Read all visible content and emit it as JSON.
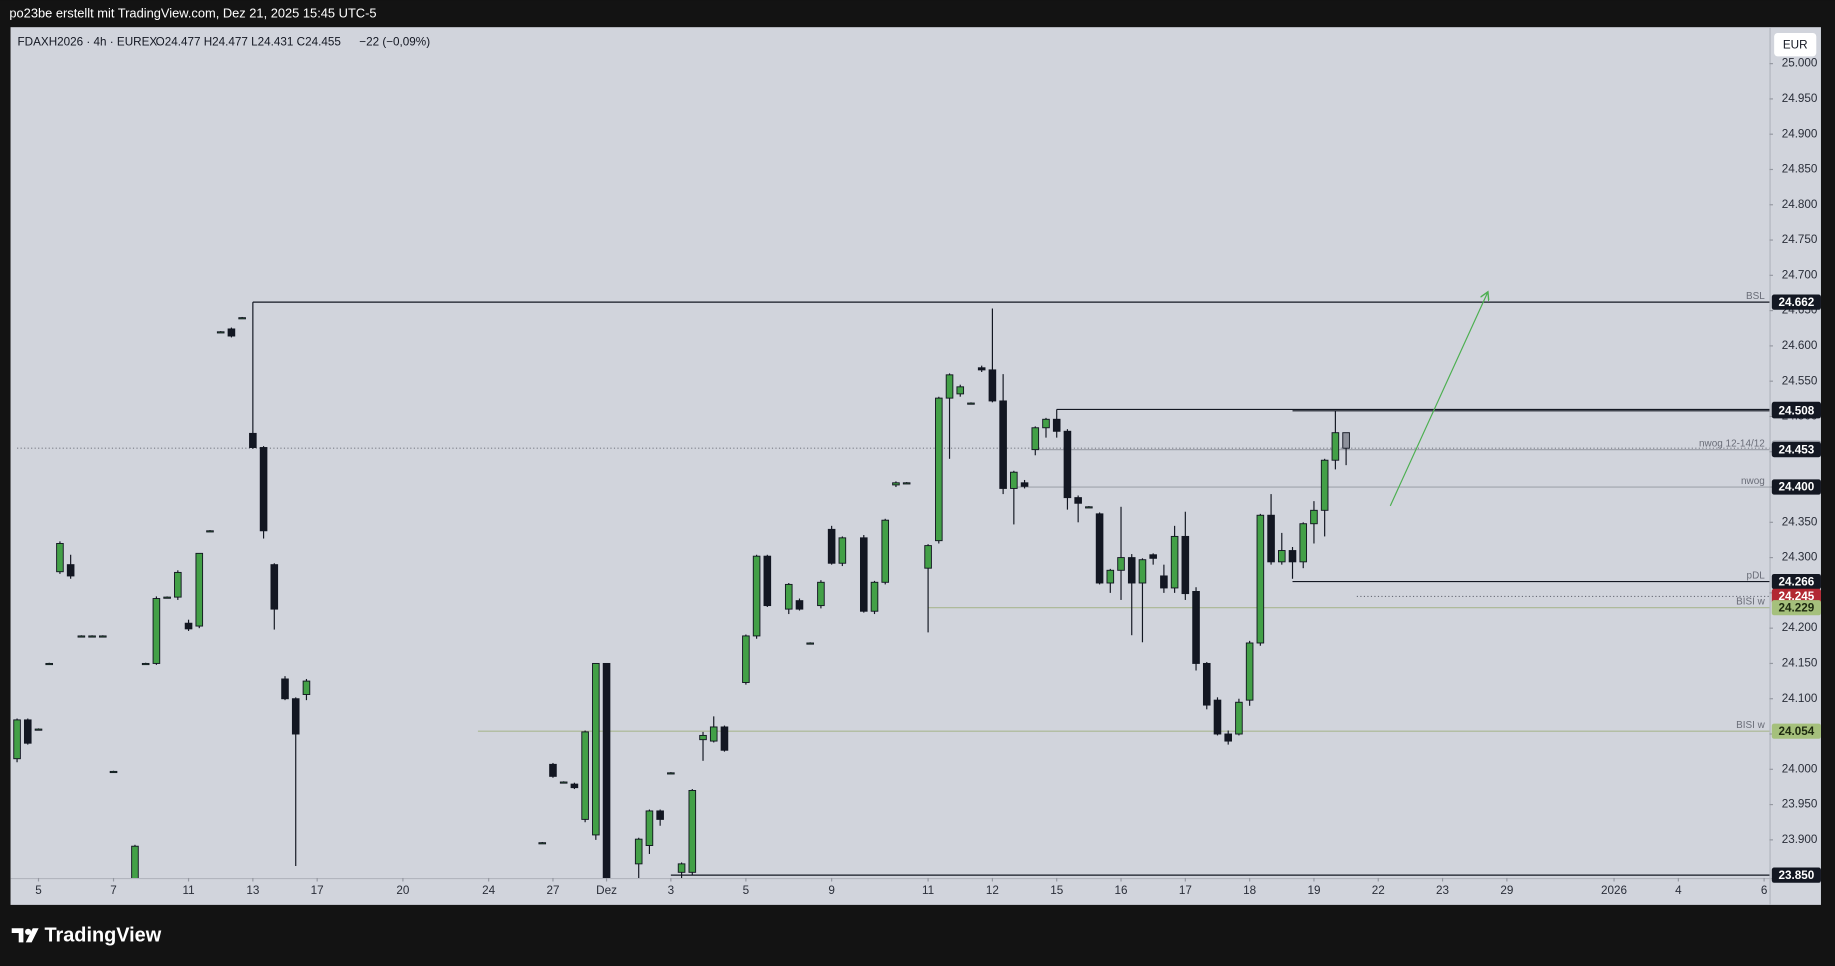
{
  "header": "po23be erstellt mit TradingView.com, Dez 21, 2025 15:45 UTC-5",
  "brand": "TradingView",
  "chart_data": {
    "type": "candlestick",
    "legend": {
      "symbol": "FDAXH2026 · 4h · EUREX",
      "ohlc": "O24.477 H24.477 L24.431 C24.455",
      "change": "−22 (−0,09%)"
    },
    "currency": "EUR",
    "up_color": "#43a047",
    "down_color": "#131722",
    "last_color": "#8e919b",
    "grid": false,
    "xlim": [
      -0.5,
      163.5
    ],
    "xticks": [
      {
        "value": 2,
        "label": "5"
      },
      {
        "value": 9,
        "label": "7"
      },
      {
        "value": 16,
        "label": "11"
      },
      {
        "value": 22,
        "label": "13"
      },
      {
        "value": 28,
        "label": "17"
      },
      {
        "value": 36,
        "label": "20"
      },
      {
        "value": 44,
        "label": "24"
      },
      {
        "value": 50,
        "label": "27"
      },
      {
        "value": 55,
        "label": "Dez"
      },
      {
        "value": 61,
        "label": "3"
      },
      {
        "value": 68,
        "label": "5"
      },
      {
        "value": 76,
        "label": "9"
      },
      {
        "value": 85,
        "label": "11"
      },
      {
        "value": 91,
        "label": "12"
      },
      {
        "value": 97,
        "label": "15"
      },
      {
        "value": 103,
        "label": "16"
      },
      {
        "value": 109,
        "label": "17"
      },
      {
        "value": 115,
        "label": "18"
      },
      {
        "value": 121,
        "label": "19"
      },
      {
        "value": 127,
        "label": "22"
      },
      {
        "value": 133,
        "label": "23"
      },
      {
        "value": 139,
        "label": "29"
      },
      {
        "value": 149,
        "label": "2026"
      },
      {
        "value": 155,
        "label": "4"
      },
      {
        "value": 163,
        "label": "6"
      }
    ],
    "ylim": [
      23846,
      25050
    ],
    "yticks": [
      {
        "value": 23900,
        "label": "23.900"
      },
      {
        "value": 23950,
        "label": "23.950"
      },
      {
        "value": 24000,
        "label": "24.000"
      },
      {
        "value": 24050,
        "label": "24.050"
      },
      {
        "value": 24100,
        "label": "24.100"
      },
      {
        "value": 24150,
        "label": "24.150"
      },
      {
        "value": 24200,
        "label": "24.200"
      },
      {
        "value": 24250,
        "label": "24.250"
      },
      {
        "value": 24300,
        "label": "24.300"
      },
      {
        "value": 24350,
        "label": "24.350"
      },
      {
        "value": 24400,
        "label": "24.400"
      },
      {
        "value": 24450,
        "label": "24.450"
      },
      {
        "value": 24500,
        "label": "24.500"
      },
      {
        "value": 24550,
        "label": "24.550"
      },
      {
        "value": 24600,
        "label": "24.600"
      },
      {
        "value": 24650,
        "label": "24.650"
      },
      {
        "value": 24700,
        "label": "24.700"
      },
      {
        "value": 24750,
        "label": "24.750"
      },
      {
        "value": 24800,
        "label": "24.800"
      },
      {
        "value": 24850,
        "label": "24.850"
      },
      {
        "value": 24900,
        "label": "24.900"
      },
      {
        "value": 24950,
        "label": "24.950"
      },
      {
        "value": 25000,
        "label": "25.000"
      }
    ],
    "x": [
      0,
      1,
      2,
      3,
      4,
      5,
      6,
      7,
      8,
      9,
      11,
      12,
      13,
      14,
      15,
      16,
      17,
      18,
      19,
      20,
      21,
      22,
      23,
      24,
      25,
      26,
      27,
      49,
      50,
      51,
      52,
      53,
      54,
      55,
      58,
      59,
      60,
      61,
      62,
      63,
      64,
      65,
      66,
      68,
      69,
      70,
      72,
      73,
      74,
      75,
      76,
      77,
      79,
      80,
      81,
      82,
      83,
      85,
      86,
      87,
      88,
      89,
      90,
      91,
      92,
      93,
      94,
      95,
      96,
      97,
      98,
      99,
      100,
      101,
      102,
      103,
      104,
      105,
      106,
      107,
      108,
      109,
      110,
      111,
      112,
      113,
      114,
      115,
      116,
      117,
      118,
      119,
      120,
      121,
      122,
      123,
      124
    ],
    "open": [
      24015,
      24070,
      24057,
      24150,
      24280,
      24290,
      24189,
      24189,
      24189,
      23997,
      23830,
      24150,
      24150,
      24244,
      24244,
      24207,
      24203,
      24338,
      24620,
      24624,
      24640,
      24476,
      24456,
      24290,
      24128,
      24100,
      24106,
      23896,
      24007,
      23982,
      23979,
      23929,
      23907,
      24150,
      23866,
      23892,
      23941,
      23995,
      23854,
      23854,
      24042,
      24040,
      24060,
      24123,
      24189,
      24302,
      24227,
      24239,
      24179,
      24232,
      24340,
      24292,
      24328,
      24224,
      24265,
      24403,
      24406,
      24285,
      24324,
      24526,
      24532,
      24519,
      24569,
      24566,
      24522,
      24398,
      24406,
      24453,
      24484,
      24496,
      24479,
      24385,
      24372,
      24362,
      24264,
      24282,
      24300,
      24264,
      24304,
      24274,
      24257,
      24330,
      24252,
      24150,
      24098,
      24050,
      24050,
      24098,
      24179,
      24360,
      24294,
      24310,
      24294,
      24348,
      24367,
      24438,
      24477
    ],
    "high": [
      24072,
      24072,
      24058,
      24151,
      24323,
      24304,
      24190,
      24190,
      24190,
      23998,
      23893,
      24151,
      24245,
      24245,
      24282,
      24212,
      24306,
      24339,
      24621,
      24626,
      24641,
      24662,
      24458,
      24292,
      24132,
      24102,
      24128,
      23897,
      24009,
      23983,
      23981,
      24055,
      24150,
      24150,
      23903,
      23943,
      23943,
      23996,
      23868,
      23972,
      24053,
      24075,
      24062,
      24191,
      24304,
      24304,
      24264,
      24242,
      24180,
      24268,
      24345,
      24330,
      24332,
      24267,
      24355,
      24408,
      24407,
      24319,
      24528,
      24561,
      24545,
      24520,
      24572,
      24653,
      24560,
      24423,
      24410,
      24486,
      24498,
      24510,
      24482,
      24388,
      24373,
      24364,
      24284,
      24372,
      24305,
      24299,
      24306,
      24290,
      24345,
      24365,
      24258,
      24152,
      24102,
      24055,
      24100,
      24182,
      24362,
      24390,
      24335,
      24315,
      24350,
      24380,
      24440,
      24508,
      24477
    ],
    "low": [
      24010,
      24035,
      24056,
      24149,
      24277,
      24270,
      24188,
      24188,
      24188,
      23996,
      23815,
      24149,
      24148,
      24243,
      24240,
      24196,
      24200,
      24337,
      24619,
      24612,
      24639,
      24454,
      24327,
      24198,
      24098,
      23863,
      24098,
      23895,
      23988,
      23981,
      23972,
      23925,
      23900,
      23800,
      23840,
      23880,
      23920,
      23994,
      23840,
      23850,
      24012,
      24038,
      24025,
      24120,
      24185,
      24230,
      24220,
      24225,
      24178,
      24228,
      24290,
      24288,
      24222,
      24220,
      24262,
      24400,
      24405,
      24194,
      24320,
      24440,
      24528,
      24518,
      24563,
      24520,
      24390,
      24347,
      24398,
      24445,
      24470,
      24470,
      24368,
      24350,
      24371,
      24262,
      24250,
      24240,
      24190,
      24180,
      24290,
      24250,
      24250,
      24240,
      24140,
      24085,
      24048,
      24035,
      24048,
      24090,
      24175,
      24290,
      24290,
      24270,
      24285,
      24320,
      24330,
      24425,
      24431
    ],
    "close": [
      24070,
      24037,
      24057,
      24150,
      24320,
      24274,
      24189,
      24189,
      24189,
      23997,
      23891,
      24150,
      24242,
      24244,
      24279,
      24199,
      24306,
      24338,
      24620,
      24614,
      24640,
      24456,
      24338,
      24227,
      24100,
      24050,
      24125,
      23896,
      23990,
      23982,
      23974,
      24053,
      24150,
      23820,
      23901,
      23941,
      23929,
      23995,
      23866,
      23970,
      24048,
      24060,
      24027,
      24189,
      24302,
      24232,
      24262,
      24227,
      24179,
      24265,
      24292,
      24328,
      24224,
      24265,
      24353,
      24406,
      24406,
      24317,
      24526,
      24559,
      24542,
      24519,
      24566,
      24522,
      24398,
      24421,
      24401,
      24484,
      24496,
      24479,
      24385,
      24377,
      24372,
      24264,
      24282,
      24300,
      24264,
      24297,
      24299,
      24257,
      24330,
      24249,
      24150,
      24091,
      24050,
      24040,
      24095,
      24179,
      24360,
      24294,
      24310,
      24294,
      24348,
      24367,
      24438,
      24477,
      24455
    ],
    "levels": {
      "values": [
        24662,
        24510,
        24508,
        24455,
        24453,
        24400,
        24266,
        24245,
        24229,
        24054,
        23850
      ],
      "value_labels": [
        "24.662",
        "24.510",
        "24.508",
        "24.455",
        "24.453",
        "24.400",
        "24.266",
        "24.245",
        "24.229",
        "24.054",
        "23.850"
      ],
      "names": [
        "BSL",
        null,
        null,
        null,
        "nwog 12-14/12",
        "nwog",
        "pDL",
        null,
        "BISI w",
        "BISI w",
        null
      ],
      "x0": [
        22,
        97,
        119,
        0,
        95,
        93,
        119,
        125,
        85,
        43,
        61
      ],
      "line_colors": [
        "#131722",
        "#131722",
        "#131722",
        "#7a7d87",
        "#a0a3ac",
        "#a0a3ac",
        "#131722",
        "#6a6d78",
        "#a9b792",
        "#a9b792",
        "#131722"
      ],
      "dashed": [
        false,
        false,
        false,
        true,
        false,
        false,
        false,
        true,
        false,
        false,
        false
      ],
      "label_colors": [
        "#131722",
        "#131722",
        "#131722",
        "#8e919b",
        "#131722",
        "#131722",
        "#131722",
        "#b22833",
        "#a5c07c",
        "#a5c07c",
        "#131722"
      ],
      "label_text_colors": [
        "#ffffff",
        "#ffffff",
        "#ffffff",
        "#ffffff",
        "#ffffff",
        "#ffffff",
        "#ffffff",
        "#ffffff",
        "#1e2a10",
        "#1e2a10",
        "#ffffff"
      ]
    }
  }
}
